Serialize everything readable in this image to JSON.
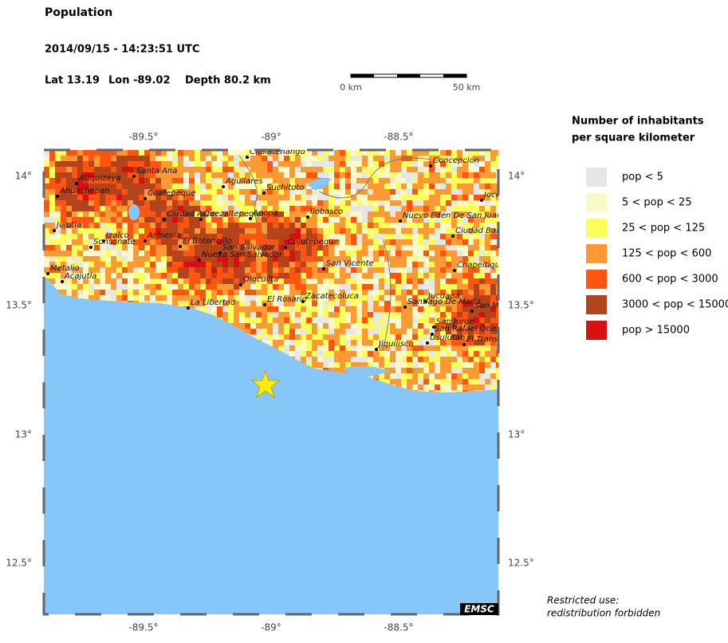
{
  "header": {
    "title": "Population",
    "datetime": "2014/09/15 - 14:23:51 UTC",
    "lat": "Lat 13.19",
    "lon": "Lon -89.02",
    "depth": "Depth  80.2 km"
  },
  "scale_bar": {
    "start": "0 km",
    "end": "50 km"
  },
  "map": {
    "lon_ticks": [
      "-89.5°",
      "-89°",
      "-88.5°"
    ],
    "lat_ticks": [
      "14°",
      "13.5°",
      "13°",
      "12.5°"
    ],
    "cities": [
      "Chalatenango",
      "Concepción",
      "Santa Ana",
      "Atiquizaya",
      "Ahuachapan",
      "Coatepeque",
      "Aguilares",
      "Suchitoto",
      "Jujutla",
      "Ciudad Arce",
      "Quezaltepeque",
      "Apopa",
      "Ilobasco",
      "Nuevo Eden De San Juan",
      "Ciudad Barrios",
      "Jocoro",
      "Izalco",
      "Sonsonate",
      "Armenia",
      "El Botoncillo",
      "San Salvador",
      "Nueva San Salvador",
      "Cojutepeque",
      "San Vicente",
      "Chapeltique",
      "Metalio",
      "Acajutla",
      "Olocuilta",
      "La Libertad",
      "El Rosario",
      "Zacatecoluca",
      "Jucuapa",
      "Santiago De Maria",
      "San Miguel",
      "San Jorge",
      "San Rafael Oriente",
      "Usulutan",
      "Jiquilisco",
      "El Transito"
    ],
    "logo": "EMSC"
  },
  "legend": {
    "title_line1": "Number of inhabitants",
    "title_line2": "per square kilometer",
    "items": [
      {
        "label": "pop < 5",
        "color": "#e6e6e6"
      },
      {
        "label": "5 < pop < 25",
        "color": "#fafac8"
      },
      {
        "label": "25 < pop < 125",
        "color": "#ffff5a"
      },
      {
        "label": "125 < pop < 600",
        "color": "#ff9933"
      },
      {
        "label": "600 < pop < 3000",
        "color": "#ff5511"
      },
      {
        "label": "3000 < pop < 15000",
        "color": "#b2431a"
      },
      {
        "label": "pop > 15000",
        "color": "#d81010"
      }
    ]
  },
  "footer": {
    "line1": "Restricted use:",
    "line2": "redistribution forbidden"
  }
}
